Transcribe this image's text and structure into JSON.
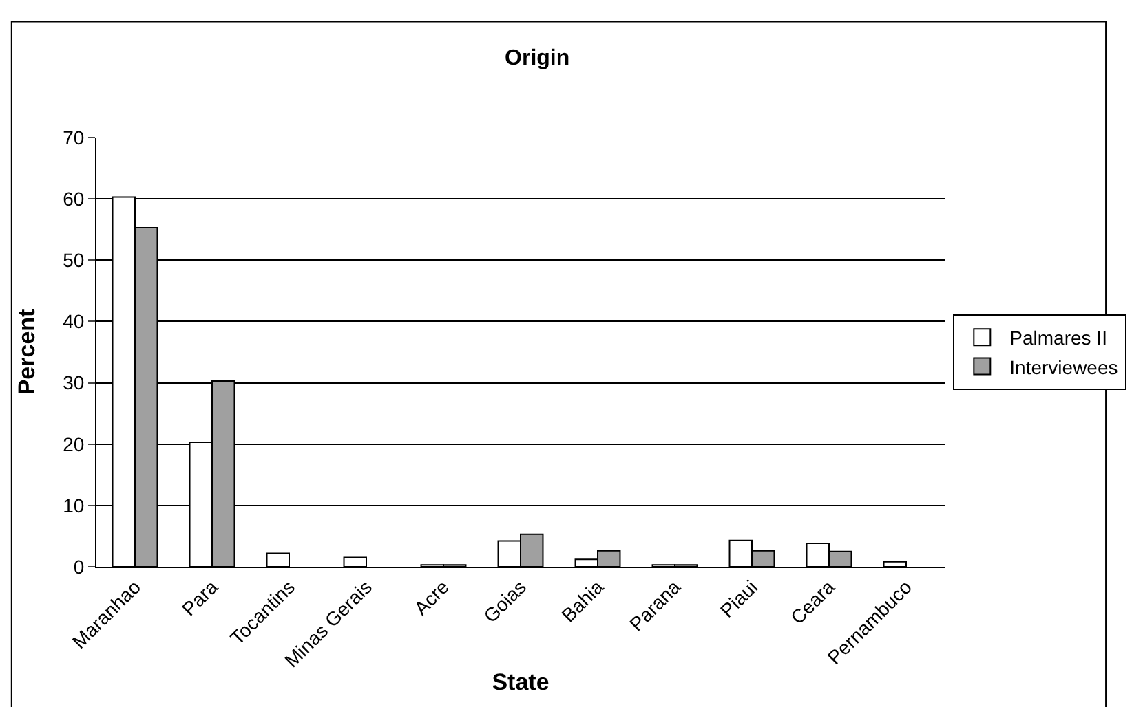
{
  "chart_data": {
    "type": "bar",
    "title": "Origin",
    "xlabel": "State",
    "ylabel": "Percent",
    "categories": [
      "Maranhao",
      "Para",
      "Tocantins",
      "Minas Gerais",
      "Acre",
      "Goias",
      "Bahia",
      "Parana",
      "Piaui",
      "Ceara",
      "Pernambuco"
    ],
    "series": [
      {
        "name": "Palmares II",
        "color": "#ffffff",
        "values": [
          60.3,
          20.3,
          2.2,
          1.5,
          0.3,
          4.2,
          1.2,
          0.3,
          4.3,
          3.8,
          0.8
        ]
      },
      {
        "name": "Interviewees",
        "color": "#a0a0a0",
        "values": [
          55.3,
          30.3,
          null,
          null,
          0.3,
          5.3,
          2.6,
          0.3,
          2.6,
          2.5,
          null
        ]
      }
    ],
    "ylim": [
      0,
      70
    ],
    "yticks": [
      0,
      10,
      20,
      30,
      40,
      50,
      60,
      70
    ],
    "grid": "y",
    "legend": "right"
  }
}
